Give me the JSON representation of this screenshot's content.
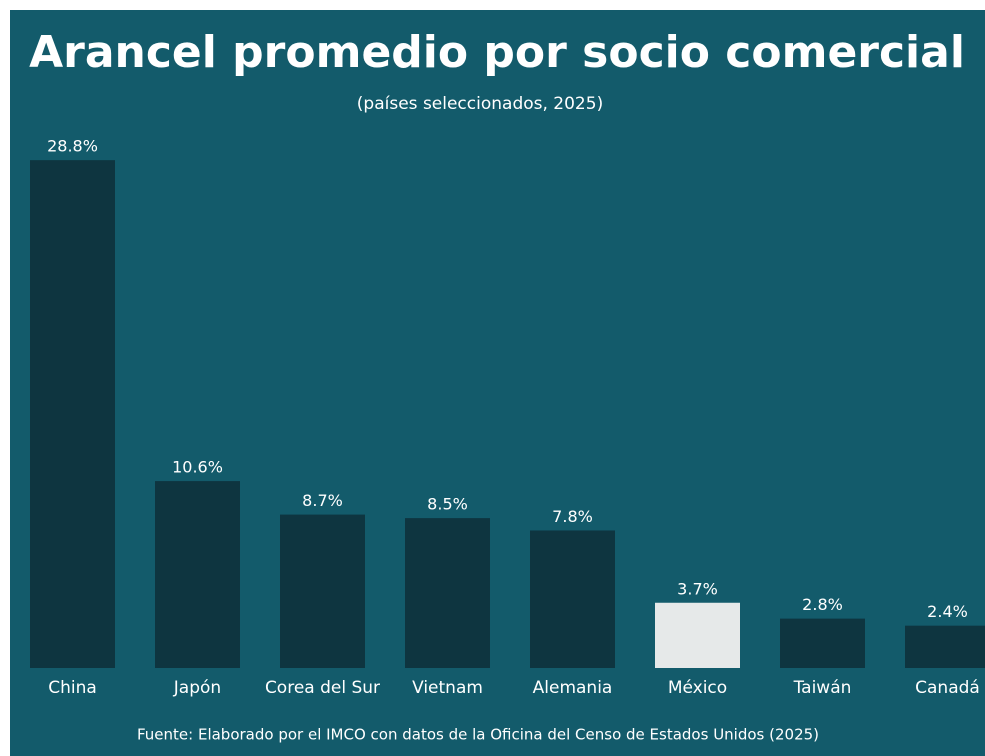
{
  "chart_data": {
    "type": "bar",
    "title": "Arancel promedio por socio comercial",
    "subtitle": "(países seleccionados, 2025)",
    "source": "Fuente: Elaborado por el IMCO con datos de la Oficina del Censo de Estados Unidos (2025)",
    "categories": [
      "China",
      "Japón",
      "Corea del Sur",
      "Vietnam",
      "Alemania",
      "México",
      "Taiwán",
      "Canadá"
    ],
    "values": [
      28.8,
      10.6,
      8.7,
      8.5,
      7.8,
      3.7,
      2.8,
      2.4
    ],
    "value_labels": [
      "28.8%",
      "10.6%",
      "8.7%",
      "8.5%",
      "7.8%",
      "3.7%",
      "2.8%",
      "2.4%"
    ],
    "colors": [
      "#0e3540",
      "#0e3540",
      "#0e3540",
      "#0e3540",
      "#0e3540",
      "#e6e9e9",
      "#0e3540",
      "#0e3540"
    ],
    "ylim": [
      0,
      30
    ]
  }
}
